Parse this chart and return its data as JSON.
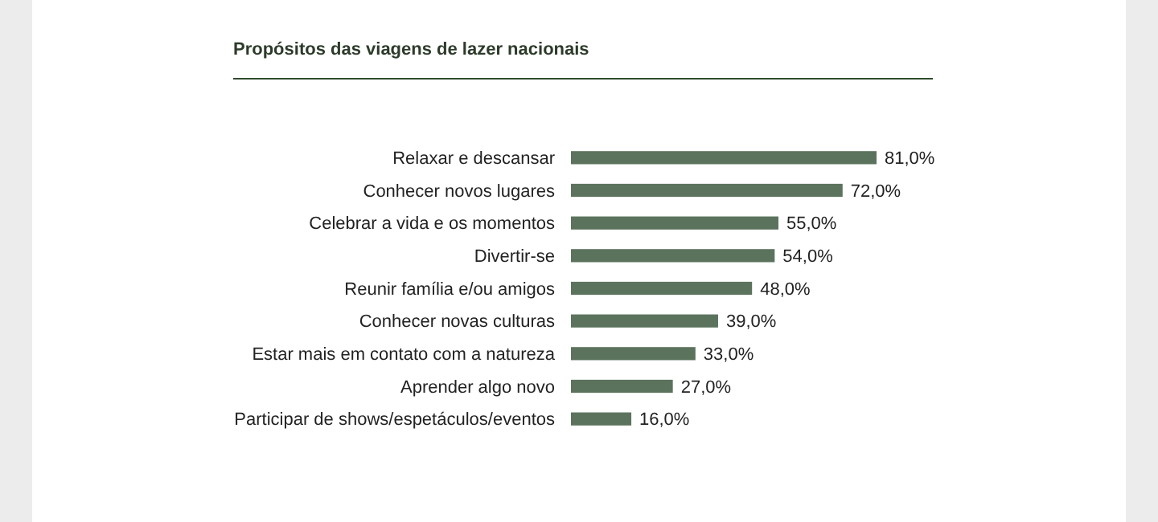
{
  "chart_data": {
    "type": "bar",
    "orientation": "horizontal",
    "title": "Propósitos das viagens de lazer nacionais",
    "categories": [
      "Relaxar e descansar",
      "Conhecer novos lugares",
      "Celebrar a vida e os momentos",
      "Divertir-se",
      "Reunir família e/ou amigos",
      "Conhecer novas culturas",
      "Estar mais em contato com a natureza",
      "Aprender algo novo",
      "Participar de shows/espetáculos/eventos"
    ],
    "values": [
      81,
      72,
      55,
      54,
      48,
      39,
      33,
      27,
      16
    ],
    "value_labels": [
      "81,0%",
      "72,0%",
      "55,0%",
      "54,0%",
      "48,0%",
      "39,0%",
      "33,0%",
      "27,0%",
      "16,0%"
    ],
    "color": "#5b735d"
  }
}
